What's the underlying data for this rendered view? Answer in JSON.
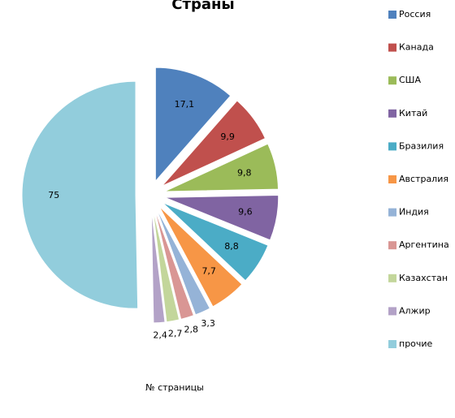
{
  "chart_data": {
    "type": "pie",
    "title": "Страны",
    "xlabel": "№ страницы",
    "categories": [
      "Россия",
      "Канада",
      "США",
      "Китай",
      "Бразилия",
      "Австралия",
      "Индия",
      "Аргентина",
      "Казахстан",
      "Алжир",
      "прочие"
    ],
    "values": [
      17.1,
      9.9,
      9.8,
      9.6,
      8.8,
      7.7,
      3.3,
      2.8,
      2.7,
      2.4,
      75
    ],
    "value_labels": [
      "17,1",
      "9,9",
      "9,8",
      "9,6",
      "8,8",
      "7,7",
      "3,3",
      "2,8",
      "2,7",
      "2,4",
      "75"
    ],
    "colors": [
      "#4F81BD",
      "#C0504D",
      "#9BBB59",
      "#8064A2",
      "#4BACC6",
      "#F79646",
      "#95B3D7",
      "#D99694",
      "#C3D69B",
      "#B3A2C7",
      "#92CDDC"
    ],
    "legend": "right"
  }
}
